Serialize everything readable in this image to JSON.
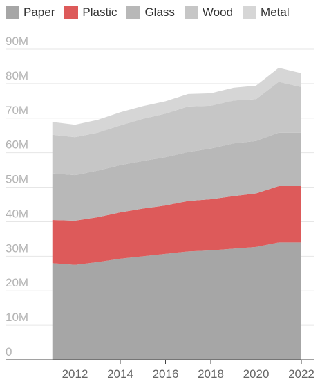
{
  "chart_data": {
    "type": "area",
    "stacked": true,
    "x": [
      2011,
      2012,
      2013,
      2014,
      2015,
      2016,
      2017,
      2018,
      2019,
      2020,
      2021,
      2022
    ],
    "series": [
      {
        "name": "Paper",
        "color": "#a6a6a6",
        "values": [
          28.0,
          27.5,
          28.3,
          29.3,
          30.0,
          30.7,
          31.4,
          31.7,
          32.2,
          32.7,
          34.0,
          34.0
        ]
      },
      {
        "name": "Plastic",
        "color": "#dd5a5a",
        "values": [
          12.5,
          12.8,
          13.0,
          13.4,
          13.8,
          14.0,
          14.6,
          14.8,
          15.2,
          15.5,
          16.3,
          16.3
        ]
      },
      {
        "name": "Glass",
        "color": "#b8b8b8",
        "values": [
          13.5,
          13.2,
          13.5,
          13.7,
          13.8,
          14.0,
          14.2,
          14.7,
          15.3,
          15.2,
          15.5,
          15.5
        ]
      },
      {
        "name": "Wood",
        "color": "#c6c6c6",
        "values": [
          11.2,
          11.0,
          11.0,
          11.5,
          12.2,
          12.6,
          13.2,
          12.4,
          12.4,
          12.1,
          14.7,
          13.2
        ]
      },
      {
        "name": "Metal",
        "color": "#d6d6d6",
        "values": [
          3.7,
          3.6,
          3.7,
          3.8,
          3.7,
          3.6,
          3.6,
          3.6,
          3.7,
          3.9,
          4.1,
          4.0
        ]
      }
    ],
    "ylim": [
      0,
      90
    ],
    "yticks": [
      0,
      10,
      20,
      30,
      40,
      50,
      60,
      70,
      80,
      90
    ],
    "ytick_labels": [
      "0",
      "10M",
      "20M",
      "30M",
      "40M",
      "50M",
      "60M",
      "70M",
      "80M",
      "90M"
    ],
    "xticks": [
      2012,
      2014,
      2016,
      2018,
      2020,
      2022
    ],
    "xtick_labels": [
      "2012",
      "2014",
      "2016",
      "2018",
      "2020",
      "2022"
    ],
    "xlim": [
      2010,
      2022
    ],
    "grid": true,
    "legend_position": "top-left"
  }
}
